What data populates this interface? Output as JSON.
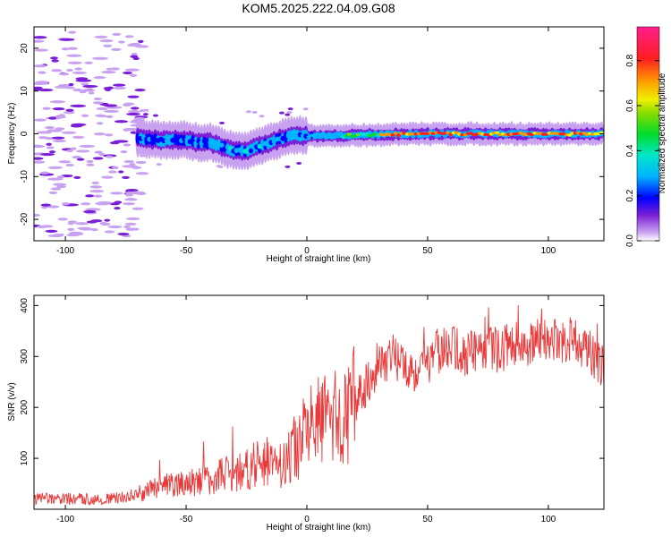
{
  "figure_title": "KOM5.2025.222.04.09.G08",
  "chart_data": [
    {
      "type": "heatmap",
      "title": "KOM5.2025.222.04.09.G08",
      "xlabel": "Height of straight line (km)",
      "ylabel": "Frequency (Hz)",
      "xlim": [
        -113,
        123
      ],
      "ylim": [
        -25,
        25
      ],
      "xticks": [
        -100,
        -50,
        0,
        50,
        100
      ],
      "xtick_labels": [
        "-100",
        "-50",
        "0",
        "50",
        "100"
      ],
      "yticks": [
        -20,
        -10,
        0,
        10,
        20
      ],
      "ytick_labels": [
        "-20",
        "-10",
        "0",
        "10",
        "20"
      ],
      "ridge": {
        "x": [
          -70,
          -60,
          -50,
          -45,
          -40,
          -35,
          -30,
          -25,
          -20,
          -15,
          -10,
          -5,
          0,
          10,
          20,
          50,
          80,
          100,
          123
        ],
        "freq": [
          -1,
          -1.5,
          -1.5,
          -2,
          -2,
          -3,
          -4,
          -4,
          -3,
          -2,
          -1,
          -0.3,
          -0.5,
          -0.5,
          -0.3,
          0,
          0,
          0,
          0
        ]
      },
      "colorbar": {
        "label": "Normalized spectral amplitude",
        "range": [
          0,
          0.95
        ],
        "ticks": [
          0,
          0.2,
          0.4,
          0.6,
          0.8
        ],
        "tick_labels": [
          "0.0",
          "0.2",
          "0.4",
          "0.6",
          "0.8"
        ]
      }
    },
    {
      "type": "line",
      "xlabel": "Height of straight line (km)",
      "ylabel": "SNR (v/v)",
      "xlim": [
        -113,
        123
      ],
      "ylim": [
        0,
        420
      ],
      "xticks": [
        -100,
        -50,
        0,
        50,
        100
      ],
      "xtick_labels": [
        "-100",
        "-50",
        "0",
        "50",
        "100"
      ],
      "yticks": [
        100,
        200,
        300,
        400
      ],
      "ytick_labels": [
        "100",
        "200",
        "300",
        "400"
      ],
      "series": [
        {
          "name": "SNR",
          "color": "#e83a3a",
          "x": [
            -113,
            -100,
            -90,
            -80,
            -70,
            -60,
            -50,
            -40,
            -35,
            -30,
            -25,
            -20,
            -15,
            -10,
            -5,
            0,
            5,
            10,
            15,
            20,
            25,
            30,
            35,
            40,
            45,
            50,
            55,
            60,
            65,
            70,
            75,
            80,
            85,
            90,
            95,
            100,
            105,
            110,
            115,
            120,
            123
          ],
          "values": [
            20,
            20,
            20,
            20,
            30,
            45,
            50,
            60,
            70,
            65,
            85,
            90,
            85,
            90,
            120,
            150,
            170,
            180,
            175,
            210,
            250,
            290,
            300,
            290,
            270,
            290,
            310,
            320,
            300,
            315,
            320,
            310,
            330,
            320,
            330,
            335,
            330,
            335,
            320,
            290,
            275
          ]
        }
      ]
    }
  ]
}
